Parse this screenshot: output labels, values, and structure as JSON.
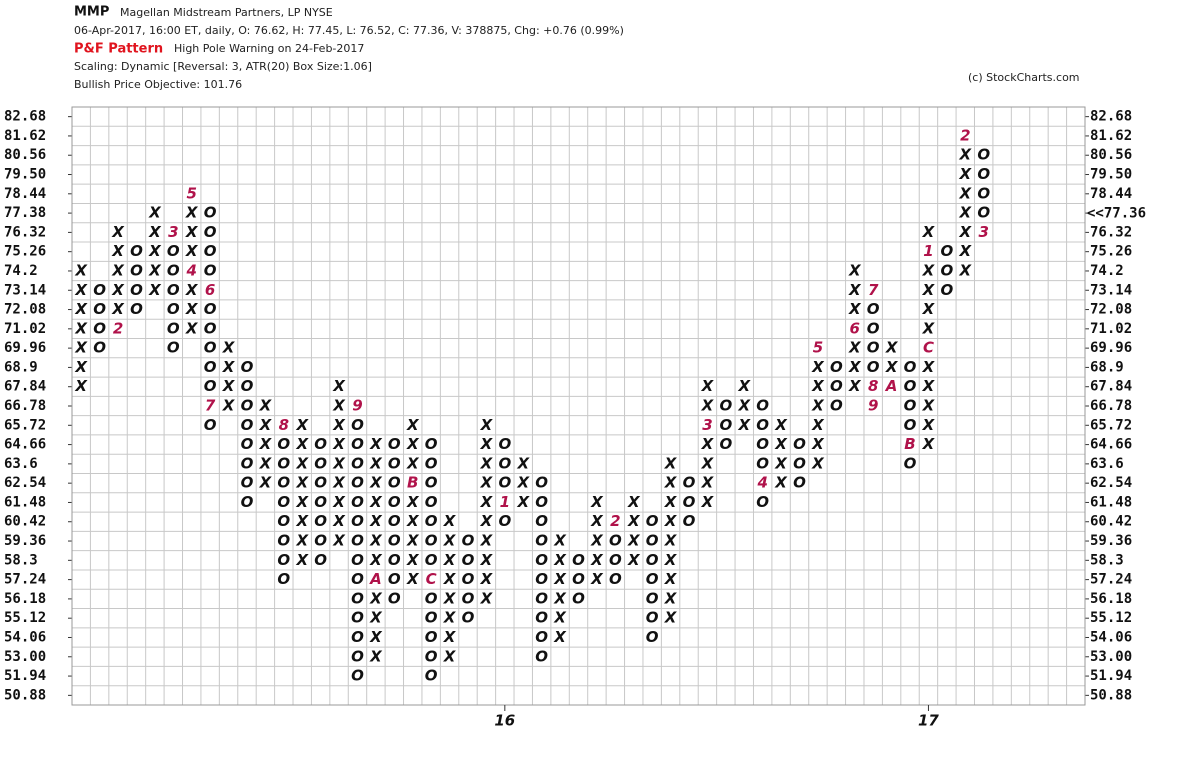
{
  "chart_data": {
    "type": "pnf",
    "symbol": "MMP",
    "company": "Magellan Midstream Partners, LP NYSE",
    "quote": "06-Apr-2017, 16:00 ET, daily, O: 76.62, H: 77.45, L: 76.52, C: 77.36, V: 378875, Chg: +0.76 (0.99%)",
    "pattern_label": "P&F Pattern",
    "pattern": "High Pole Warning on 24-Feb-2017",
    "scaling": "Scaling: Dynamic [Reversal: 3, ATR(20) Box Size:1.06]",
    "objective": "Bullish Price Objective: 101.76",
    "credit": "(c) StockCharts.com",
    "ylim": [
      50.35,
      83.21
    ],
    "yticks": [
      82.68,
      81.62,
      80.56,
      {
        "value": 79.5,
        "label": "79.50"
      },
      78.44,
      77.38,
      76.32,
      75.26,
      74.2,
      73.14,
      72.08,
      71.02,
      69.96,
      68.9,
      67.84,
      66.78,
      65.72,
      64.66,
      63.6,
      62.54,
      61.48,
      60.42,
      59.36,
      58.3,
      57.24,
      56.18,
      55.12,
      54.06,
      {
        "value": 53,
        "label": "53.00"
      },
      51.94,
      50.88
    ],
    "last_price": {
      "value": 77.36,
      "label": "<<77.36",
      "color": "#c0124a"
    },
    "x_labels": [
      {
        "column": 23,
        "label": "16"
      },
      {
        "column": 46,
        "label": "17"
      }
    ],
    "columns": [
      {
        "type": "X",
        "bottom": 67.84,
        "top": 74.2,
        "months": []
      },
      {
        "type": "O",
        "bottom": 69.96,
        "top": 73.14,
        "months": []
      },
      {
        "type": "X",
        "bottom": 71.02,
        "top": 76.32,
        "months": [
          {
            "price": 71.02,
            "label": "2"
          }
        ]
      },
      {
        "type": "O",
        "bottom": 72.08,
        "top": 75.26,
        "months": []
      },
      {
        "type": "X",
        "bottom": 73.14,
        "top": 77.38,
        "months": []
      },
      {
        "type": "O",
        "bottom": 69.96,
        "top": 76.32,
        "months": [
          {
            "price": 76.32,
            "label": "3"
          }
        ]
      },
      {
        "type": "X",
        "bottom": 71.02,
        "top": 78.44,
        "months": [
          {
            "price": 74.2,
            "label": "4"
          },
          {
            "price": 78.44,
            "label": "5"
          }
        ]
      },
      {
        "type": "O",
        "bottom": 65.72,
        "top": 77.38,
        "months": [
          {
            "price": 73.14,
            "label": "6"
          },
          {
            "price": 66.78,
            "label": "7"
          }
        ]
      },
      {
        "type": "X",
        "bottom": 66.78,
        "top": 69.96,
        "months": []
      },
      {
        "type": "O",
        "bottom": 61.48,
        "top": 68.9,
        "months": []
      },
      {
        "type": "X",
        "bottom": 62.54,
        "top": 66.78,
        "months": []
      },
      {
        "type": "O",
        "bottom": 57.24,
        "top": 65.72,
        "months": [
          {
            "price": 65.72,
            "label": "8"
          }
        ]
      },
      {
        "type": "X",
        "bottom": 58.3,
        "top": 65.72,
        "months": []
      },
      {
        "type": "O",
        "bottom": 58.3,
        "top": 64.66,
        "months": []
      },
      {
        "type": "X",
        "bottom": 59.36,
        "top": 67.84,
        "months": []
      },
      {
        "type": "O",
        "bottom": 51.94,
        "top": 66.78,
        "months": [
          {
            "price": 66.78,
            "label": "9"
          }
        ]
      },
      {
        "type": "X",
        "bottom": 53,
        "top": 64.66,
        "months": [
          {
            "price": 57.24,
            "label": "A"
          }
        ]
      },
      {
        "type": "O",
        "bottom": 56.18,
        "top": 64.66,
        "months": []
      },
      {
        "type": "X",
        "bottom": 57.24,
        "top": 65.72,
        "months": [
          {
            "price": 62.54,
            "label": "B"
          }
        ]
      },
      {
        "type": "O",
        "bottom": 51.94,
        "top": 64.66,
        "months": [
          {
            "price": 57.24,
            "label": "C"
          }
        ]
      },
      {
        "type": "X",
        "bottom": 53,
        "top": 60.42,
        "months": []
      },
      {
        "type": "O",
        "bottom": 55.12,
        "top": 59.36,
        "months": []
      },
      {
        "type": "X",
        "bottom": 56.18,
        "top": 65.72,
        "months": []
      },
      {
        "type": "O",
        "bottom": 60.42,
        "top": 64.66,
        "months": [
          {
            "price": 61.48,
            "label": "1"
          }
        ]
      },
      {
        "type": "X",
        "bottom": 61.48,
        "top": 63.6,
        "months": []
      },
      {
        "type": "O",
        "bottom": 53,
        "top": 62.54,
        "months": []
      },
      {
        "type": "X",
        "bottom": 54.06,
        "top": 59.36,
        "months": []
      },
      {
        "type": "O",
        "bottom": 56.18,
        "top": 58.3,
        "months": []
      },
      {
        "type": "X",
        "bottom": 57.24,
        "top": 61.48,
        "months": []
      },
      {
        "type": "O",
        "bottom": 57.24,
        "top": 60.42,
        "months": [
          {
            "price": 60.42,
            "label": "2"
          }
        ]
      },
      {
        "type": "X",
        "bottom": 58.3,
        "top": 61.48,
        "months": []
      },
      {
        "type": "O",
        "bottom": 54.06,
        "top": 60.42,
        "months": []
      },
      {
        "type": "X",
        "bottom": 55.12,
        "top": 63.6,
        "months": []
      },
      {
        "type": "O",
        "bottom": 60.42,
        "top": 62.54,
        "months": []
      },
      {
        "type": "X",
        "bottom": 61.48,
        "top": 67.84,
        "months": [
          {
            "price": 65.72,
            "label": "3"
          }
        ]
      },
      {
        "type": "O",
        "bottom": 64.66,
        "top": 66.78,
        "months": []
      },
      {
        "type": "X",
        "bottom": 65.72,
        "top": 67.84,
        "months": []
      },
      {
        "type": "O",
        "bottom": 61.48,
        "top": 66.78,
        "months": [
          {
            "price": 62.54,
            "label": "4"
          }
        ]
      },
      {
        "type": "X",
        "bottom": 62.54,
        "top": 65.72,
        "months": []
      },
      {
        "type": "O",
        "bottom": 62.54,
        "top": 64.66,
        "months": []
      },
      {
        "type": "X",
        "bottom": 63.6,
        "top": 69.96,
        "months": [
          {
            "price": 69.96,
            "label": "5"
          }
        ]
      },
      {
        "type": "O",
        "bottom": 66.78,
        "top": 68.9,
        "months": []
      },
      {
        "type": "X",
        "bottom": 67.84,
        "top": 74.2,
        "months": [
          {
            "price": 71.02,
            "label": "6"
          }
        ]
      },
      {
        "type": "O",
        "bottom": 66.78,
        "top": 73.14,
        "months": [
          {
            "price": 73.14,
            "label": "7"
          },
          {
            "price": 67.84,
            "label": "8"
          },
          {
            "price": 66.78,
            "label": "9"
          }
        ]
      },
      {
        "type": "X",
        "bottom": 67.84,
        "top": 69.96,
        "months": [
          {
            "price": 67.84,
            "label": "A"
          }
        ]
      },
      {
        "type": "O",
        "bottom": 63.6,
        "top": 68.9,
        "months": [
          {
            "price": 64.66,
            "label": "B"
          }
        ]
      },
      {
        "type": "X",
        "bottom": 64.66,
        "top": 76.32,
        "months": [
          {
            "price": 69.96,
            "label": "C"
          },
          {
            "price": 75.26,
            "label": "1"
          }
        ]
      },
      {
        "type": "O",
        "bottom": 73.14,
        "top": 75.26,
        "months": []
      },
      {
        "type": "X",
        "bottom": 74.2,
        "top": 81.62,
        "months": [
          {
            "price": 81.62,
            "label": "2"
          }
        ]
      },
      {
        "type": "O",
        "bottom": 76.32,
        "top": 80.56,
        "months": [
          {
            "price": 76.32,
            "label": "3"
          }
        ]
      }
    ]
  }
}
